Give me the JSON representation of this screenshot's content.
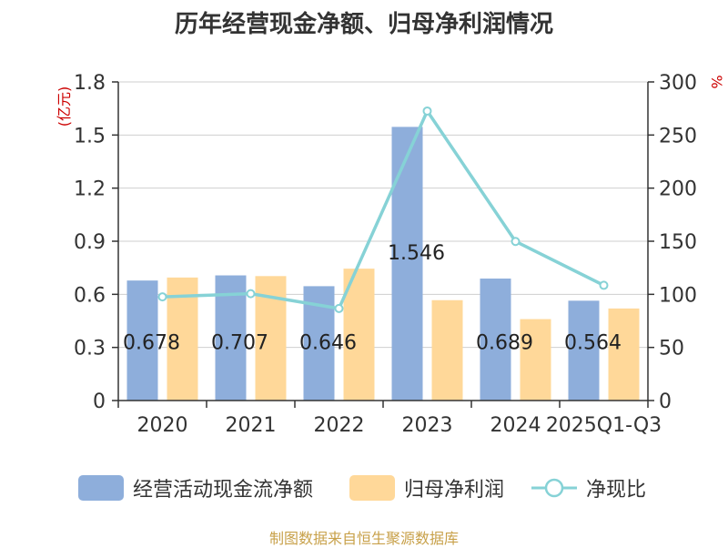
{
  "title": "历年经营现金净额、归母净利润情况",
  "source": "制图数据来自恒生聚源数据库",
  "colors": {
    "series_cash": "#8eaedb",
    "series_profit": "#ffd899",
    "series_ratio": "#86d2d6",
    "axis_unit": "#cc0000"
  },
  "chart_data": {
    "type": "bar",
    "title": "历年经营现金净额、归母净利润情况",
    "categories": [
      "2020",
      "2021",
      "2022",
      "2023",
      "2024",
      "2025Q1-Q3"
    ],
    "y_left": {
      "unit_label": "(亿元)",
      "range": [
        0,
        1.8
      ],
      "ticks": [
        "0",
        "0.3",
        "0.6",
        "0.9",
        "1.2",
        "1.5",
        "1.8"
      ]
    },
    "y_right": {
      "unit_label": "%",
      "range": [
        0,
        300
      ],
      "ticks": [
        "0",
        "50",
        "100",
        "150",
        "200",
        "250",
        "300"
      ]
    },
    "grid": true,
    "legend_position": "bottom",
    "series": [
      {
        "name": "经营活动现金流净额",
        "type": "bar",
        "axis": "left",
        "values": [
          0.678,
          0.707,
          0.646,
          1.546,
          0.689,
          0.564
        ],
        "labels": [
          "0.678",
          "0.707",
          "0.646",
          "1.546",
          "0.689",
          "0.564"
        ]
      },
      {
        "name": "归母净利润",
        "type": "bar",
        "axis": "left",
        "values": [
          0.695,
          0.703,
          0.745,
          0.567,
          0.46,
          0.52
        ]
      },
      {
        "name": "净现比",
        "type": "line",
        "axis": "right",
        "values": [
          97.6,
          100.6,
          86.7,
          272.6,
          149.8,
          108.5
        ]
      }
    ]
  }
}
